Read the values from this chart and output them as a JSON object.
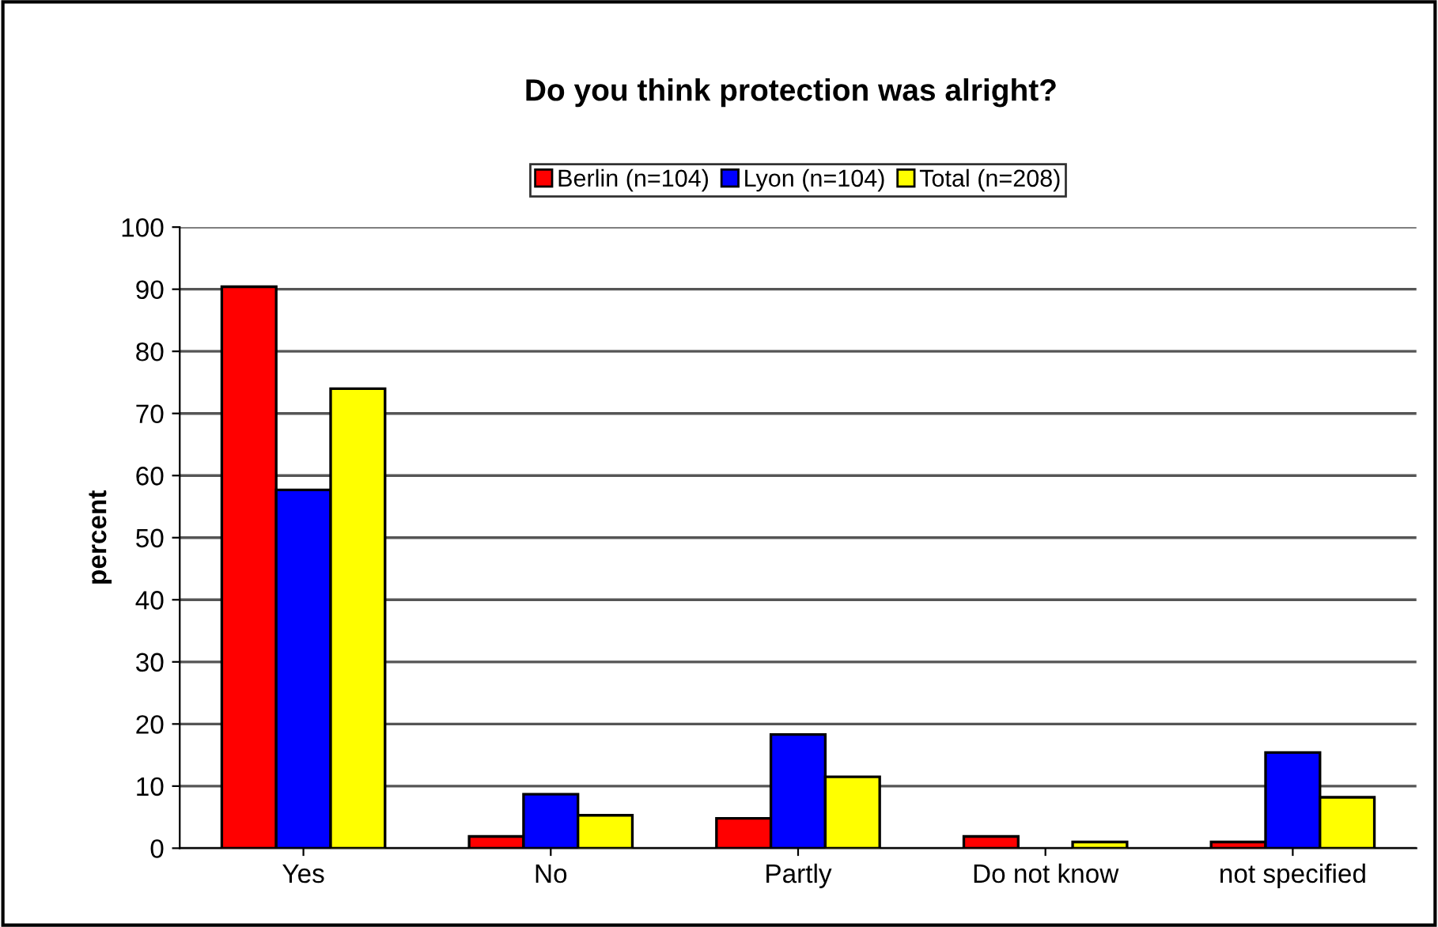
{
  "chart_data": {
    "type": "bar",
    "title": "Do you think protection was alright?",
    "ylabel": "percent",
    "categories": [
      "Yes",
      "No",
      "Partly",
      "Do not know",
      "not specified"
    ],
    "series": [
      {
        "name": "Berlin (n=104)",
        "color": "#ff0000",
        "values": [
          90.4,
          1.9,
          4.8,
          1.9,
          1.0
        ]
      },
      {
        "name": "Lyon (n=104)",
        "color": "#0000ff",
        "values": [
          57.7,
          8.7,
          18.3,
          null,
          15.4
        ]
      },
      {
        "name": "Total (n=208)",
        "color": "#ffff00",
        "values": [
          74.0,
          5.3,
          11.5,
          1.0,
          8.2
        ]
      }
    ],
    "ylim": [
      0,
      100
    ],
    "yticks": [
      0,
      10,
      20,
      30,
      40,
      50,
      60,
      70,
      80,
      90,
      100
    ],
    "grid": "y",
    "legend": "top"
  }
}
